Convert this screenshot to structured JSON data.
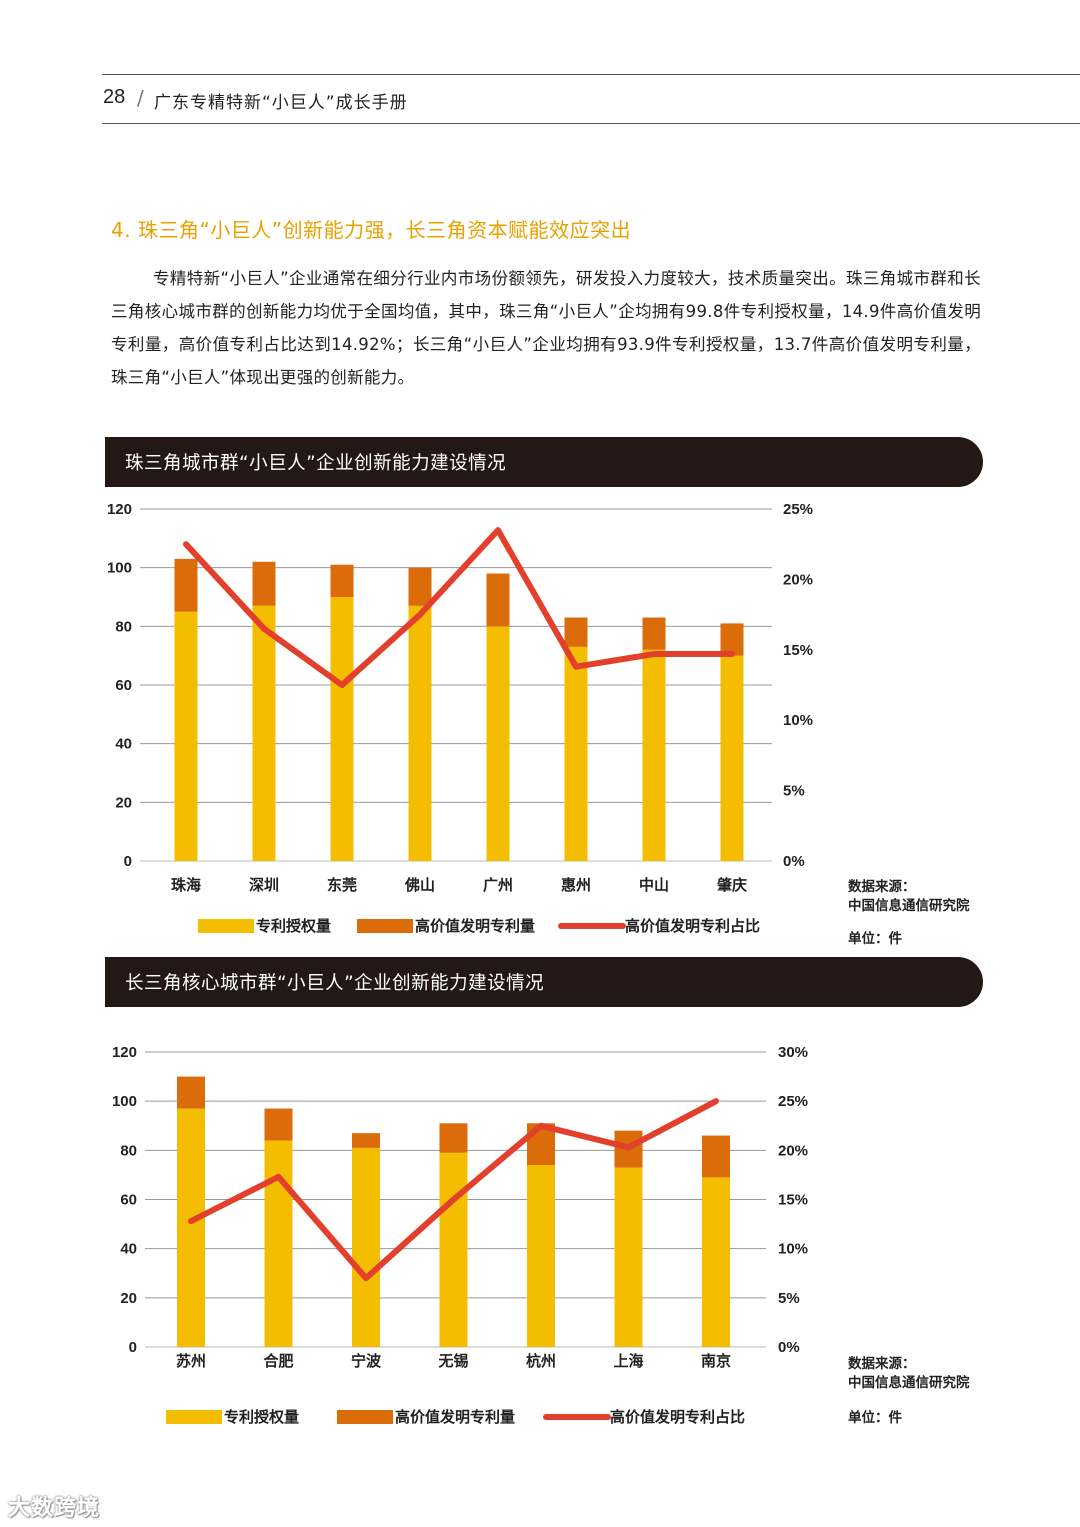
{
  "header": {
    "page_number": "28",
    "separator": "/",
    "book_title": "广东专精特新“小巨人”成长手册"
  },
  "section": {
    "title": "4. 珠三角“小巨人”创新能力强，长三角资本赋能效应突出",
    "paragraph": "专精特新“小巨人”企业通常在细分行业内市场份额领先，研发投入力度较大，技术质量突出。珠三角城市群和长三角核心城市群的创新能力均优于全国均值，其中，珠三角“小巨人”企均拥有99.8件专利授权量，14.9件高价值发明专利量，高价值专利占比达到14.92%；长三角“小巨人”企业均拥有93.9件专利授权量，13.7件高价值发明专利量，珠三角“小巨人”体现出更强的创新能力。"
  },
  "colors": {
    "patent": "#f5bd00",
    "high_value": "#dc6b0a",
    "ratio_line": "#e2402c",
    "banner": "#231815"
  },
  "chart_data": [
    {
      "type": "bar",
      "title": "珠三角城市群“小巨人”企业创新能力建设情况",
      "categories": [
        "珠海",
        "深圳",
        "东莞",
        "佛山",
        "广州",
        "惠州",
        "中山",
        "肇庆"
      ],
      "series": [
        {
          "name": "专利授权量",
          "kind": "bar-stack",
          "values": [
            85,
            87,
            90,
            87,
            80,
            73,
            72,
            70
          ]
        },
        {
          "name": "高价值发明专利量",
          "kind": "bar-stack",
          "values": [
            18,
            15,
            11,
            13,
            18,
            10,
            11,
            11
          ]
        },
        {
          "name": "高价值发明专利占比",
          "kind": "line",
          "axis": "right",
          "values": [
            22.5,
            16.5,
            12.5,
            17.5,
            23.5,
            13.8,
            14.7,
            14.7
          ]
        }
      ],
      "ylim": [
        0,
        120
      ],
      "yticks": [
        "120",
        "100",
        "80",
        "60",
        "40",
        "20",
        "0"
      ],
      "y2lim": [
        0,
        25
      ],
      "y2ticks": [
        "25%",
        "20%",
        "15%",
        "10%",
        "5%",
        "0%"
      ],
      "legend": [
        "专利授权量",
        "高价值发明专利量",
        "高价值发明专利占比"
      ],
      "source_label": "数据来源：",
      "source": "中国信息通信研究院",
      "unit": "单位：件"
    },
    {
      "type": "bar",
      "title": "长三角核心城市群“小巨人”企业创新能力建设情况",
      "categories": [
        "苏州",
        "合肥",
        "宁波",
        "无锡",
        "杭州",
        "上海",
        "南京"
      ],
      "series": [
        {
          "name": "专利授权量",
          "kind": "bar-stack",
          "values": [
            97,
            84,
            81,
            79,
            74,
            73,
            69
          ]
        },
        {
          "name": "高价值发明专利量",
          "kind": "bar-stack",
          "values": [
            13,
            13,
            6,
            12,
            17,
            15,
            17
          ]
        },
        {
          "name": "高价值发明专利占比",
          "kind": "line",
          "axis": "right",
          "values": [
            12.8,
            17.3,
            7.0,
            15.0,
            22.5,
            20.3,
            25.0
          ]
        }
      ],
      "ylim": [
        0,
        120
      ],
      "yticks": [
        "120",
        "100",
        "80",
        "60",
        "40",
        "20",
        "0"
      ],
      "y2lim": [
        0,
        30
      ],
      "y2ticks": [
        "30%",
        "25%",
        "20%",
        "15%",
        "10%",
        "5%",
        "0%"
      ],
      "legend": [
        "专利授权量",
        "高价值发明专利量",
        "高价值发明专利占比"
      ],
      "source_label": "数据来源：",
      "source": "中国信息通信研究院",
      "unit": "单位：件"
    }
  ],
  "watermark": "大数跨境"
}
